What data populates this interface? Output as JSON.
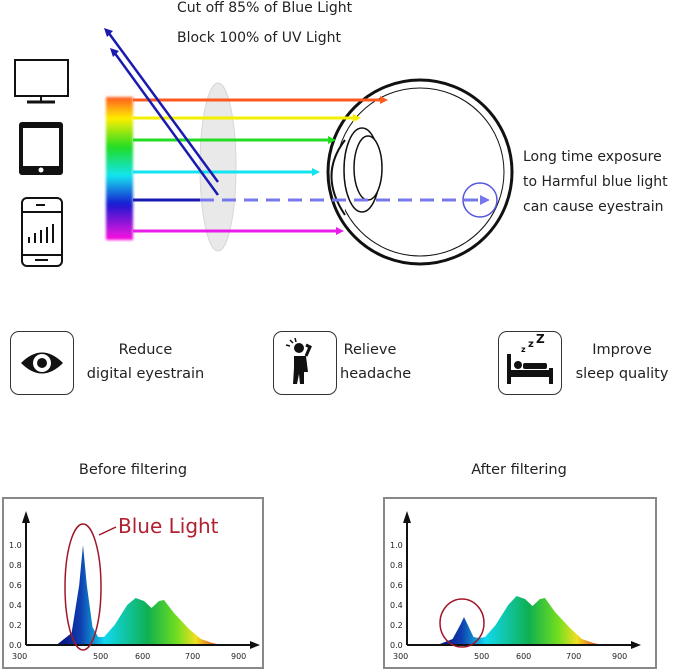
{
  "top": {
    "line1": "Cut off 85% of Blue Light",
    "line2": "Block 100% of UV Light",
    "devices": [
      "monitor-icon",
      "tablet-icon",
      "smartphone-icon"
    ],
    "eye_note": [
      "Long time exposure",
      "to Harmful blue light",
      "can cause eyestrain"
    ],
    "ray_colors": [
      "#ff5a1e",
      "#f5f000",
      "#22dd22",
      "#11e4f0",
      "#1a1ad0",
      "#e81ee8"
    ],
    "blocked_color": "#1a1ab0",
    "dashed_color": "#7777ee"
  },
  "benefits": [
    {
      "icon": "eye-icon",
      "line1": "Reduce",
      "line2": "digital eyestrain"
    },
    {
      "icon": "headache-person-icon",
      "line1": "Relieve",
      "line2": "headache"
    },
    {
      "icon": "sleeping-bed-icon",
      "line1": "Improve",
      "line2": "sleep quality"
    }
  ],
  "chart_data": [
    {
      "type": "area",
      "title": "Before filtering",
      "annotation": "Blue Light",
      "x_ticks": [
        300,
        500,
        600,
        700,
        900
      ],
      "y_ticks": [
        "0.0",
        "0.2",
        "0.4",
        "0.6",
        "0.8",
        "1.0"
      ],
      "ylim": [
        0,
        1.0
      ],
      "x": [
        380,
        420,
        440,
        450,
        460,
        475,
        490,
        505,
        530,
        560,
        580,
        600,
        615,
        630,
        640,
        660,
        690,
        730,
        780,
        820
      ],
      "y": [
        0,
        0.12,
        0.6,
        1.0,
        0.6,
        0.18,
        0.08,
        0.08,
        0.2,
        0.4,
        0.47,
        0.44,
        0.37,
        0.44,
        0.45,
        0.32,
        0.16,
        0.06,
        0.02,
        0
      ]
    },
    {
      "type": "area",
      "title": "After filtering",
      "x_ticks": [
        300,
        500,
        600,
        700,
        900
      ],
      "y_ticks": [
        "0.0",
        "0.2",
        "0.4",
        "0.6",
        "0.8",
        "1.0"
      ],
      "ylim": [
        0,
        1.0
      ],
      "x": [
        380,
        420,
        440,
        450,
        460,
        475,
        490,
        505,
        530,
        560,
        580,
        600,
        615,
        630,
        640,
        660,
        690,
        730,
        780,
        820
      ],
      "y": [
        0,
        0.06,
        0.2,
        0.28,
        0.2,
        0.08,
        0.07,
        0.08,
        0.2,
        0.4,
        0.49,
        0.46,
        0.39,
        0.46,
        0.47,
        0.33,
        0.17,
        0.06,
        0.02,
        0
      ]
    }
  ]
}
